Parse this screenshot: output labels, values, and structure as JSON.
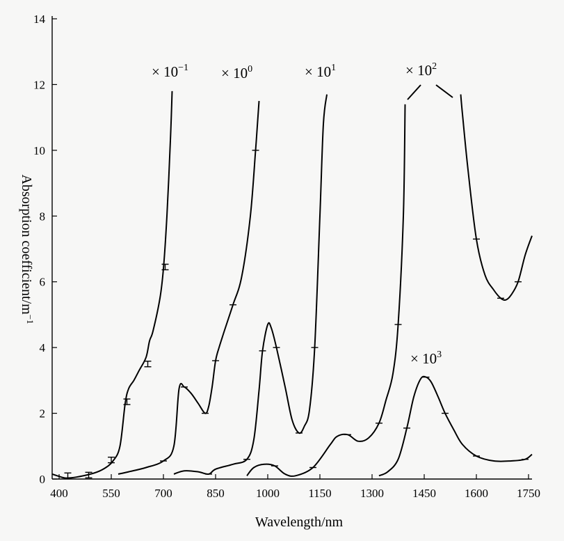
{
  "chart_data": {
    "type": "line",
    "title": "",
    "xlabel": "Wavelength/nm",
    "ylabel": "Absorption coefficient/m",
    "ylabel_superscript": "−1",
    "xlim": [
      380,
      1760
    ],
    "ylim": [
      0,
      14
    ],
    "x_tick_labels": [
      "400",
      "550",
      "700",
      "850",
      "1000",
      "1150",
      "1300",
      "1450",
      "1600",
      "1750"
    ],
    "x_tick_values": [
      400,
      550,
      700,
      850,
      1000,
      1150,
      1300,
      1450,
      1600,
      1750
    ],
    "y_tick_labels": [
      "0",
      "2",
      "4",
      "6",
      "8",
      "10",
      "12",
      "14"
    ],
    "y_tick_values": [
      0,
      2,
      4,
      6,
      8,
      10,
      12,
      14
    ],
    "grid": false,
    "legend": "none",
    "series": [
      {
        "annotation_base": "× 10",
        "annotation_exp": "−1",
        "x": [
          380,
          400,
          420,
          450,
          500,
          530,
          555,
          575,
          590,
          600,
          615,
          630,
          650,
          660,
          670,
          690,
          700,
          710,
          720,
          725
        ],
        "y": [
          0.15,
          0.08,
          0.03,
          0.06,
          0.18,
          0.32,
          0.55,
          1.0,
          2.3,
          2.75,
          3.0,
          3.3,
          3.7,
          4.2,
          4.5,
          5.5,
          6.4,
          8.0,
          10.3,
          11.8
        ],
        "error_x": [
          425,
          485,
          550,
          595,
          655,
          705
        ],
        "error_y": [
          0.1,
          0.12,
          0.58,
          2.35,
          3.5,
          6.45
        ]
      },
      {
        "annotation_base": "× 10",
        "annotation_exp": "0",
        "x": [
          570,
          600,
          650,
          700,
          730,
          745,
          760,
          780,
          800,
          820,
          830,
          840,
          850,
          860,
          875,
          900,
          925,
          950,
          965,
          975
        ],
        "y": [
          0.15,
          0.22,
          0.35,
          0.55,
          1.0,
          2.75,
          2.8,
          2.6,
          2.3,
          2.0,
          2.2,
          2.8,
          3.6,
          4.0,
          4.5,
          5.3,
          6.15,
          8.0,
          10.0,
          11.5
        ]
      },
      {
        "annotation_base": "× 10",
        "annotation_exp": "1",
        "x": [
          730,
          760,
          800,
          830,
          850,
          900,
          940,
          960,
          975,
          985,
          1000,
          1010,
          1025,
          1050,
          1070,
          1090,
          1105,
          1120,
          1135,
          1150,
          1160,
          1170
        ],
        "y": [
          0.15,
          0.25,
          0.22,
          0.15,
          0.3,
          0.45,
          0.6,
          1.2,
          2.7,
          3.9,
          4.7,
          4.6,
          4.0,
          2.8,
          1.8,
          1.4,
          1.6,
          2.1,
          4.0,
          8.0,
          10.8,
          11.7
        ]
      },
      {
        "annotation_base": "× 10",
        "annotation_exp": "2",
        "x": [
          940,
          960,
          990,
          1020,
          1050,
          1080,
          1130,
          1180,
          1200,
          1230,
          1260,
          1290,
          1320,
          1340,
          1360,
          1375,
          1390,
          1395
        ],
        "y": [
          0.1,
          0.35,
          0.45,
          0.4,
          0.15,
          0.1,
          0.35,
          1.05,
          1.3,
          1.35,
          1.15,
          1.25,
          1.7,
          2.4,
          3.2,
          4.7,
          8.0,
          11.4
        ]
      },
      {
        "annotation_base": "× 10",
        "annotation_exp": "2",
        "x": [
          1555,
          1560,
          1575,
          1600,
          1625,
          1650,
          1670,
          1685,
          1700,
          1720,
          1740,
          1760
        ],
        "y": [
          11.7,
          11.1,
          9.5,
          7.3,
          6.2,
          5.75,
          5.5,
          5.45,
          5.6,
          6.0,
          6.8,
          7.4
        ]
      },
      {
        "annotation_base": "× 10",
        "annotation_exp": "3",
        "x": [
          1320,
          1345,
          1375,
          1400,
          1420,
          1440,
          1455,
          1470,
          1490,
          1510,
          1535,
          1560,
          1600,
          1650,
          1700,
          1740,
          1760
        ],
        "y": [
          0.1,
          0.22,
          0.6,
          1.55,
          2.5,
          3.05,
          3.1,
          2.95,
          2.5,
          2.0,
          1.5,
          1.05,
          0.7,
          0.55,
          0.55,
          0.6,
          0.75
        ]
      }
    ]
  }
}
